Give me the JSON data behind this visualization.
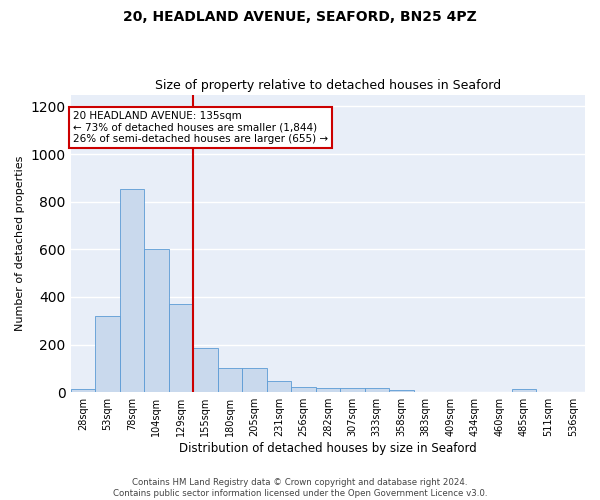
{
  "title1": "20, HEADLAND AVENUE, SEAFORD, BN25 4PZ",
  "title2": "Size of property relative to detached houses in Seaford",
  "xlabel": "Distribution of detached houses by size in Seaford",
  "ylabel": "Number of detached properties",
  "bin_labels": [
    "28sqm",
    "53sqm",
    "78sqm",
    "104sqm",
    "129sqm",
    "155sqm",
    "180sqm",
    "205sqm",
    "231sqm",
    "256sqm",
    "282sqm",
    "307sqm",
    "333sqm",
    "358sqm",
    "383sqm",
    "409sqm",
    "434sqm",
    "460sqm",
    "485sqm",
    "511sqm",
    "536sqm"
  ],
  "bar_heights": [
    15,
    320,
    855,
    600,
    370,
    185,
    100,
    100,
    48,
    20,
    18,
    17,
    17,
    10,
    0,
    0,
    0,
    0,
    15,
    0,
    0
  ],
  "bar_color": "#c9d9ed",
  "bar_edge_color": "#5b9bd5",
  "background_color": "#e8eef8",
  "grid_color": "#ffffff",
  "vline_x": 4.5,
  "vline_color": "#cc0000",
  "annotation_text": "20 HEADLAND AVENUE: 135sqm\n← 73% of detached houses are smaller (1,844)\n26% of semi-detached houses are larger (655) →",
  "annotation_box_color": "#ffffff",
  "annotation_box_edge": "#cc0000",
  "footer_text": "Contains HM Land Registry data © Crown copyright and database right 2024.\nContains public sector information licensed under the Open Government Licence v3.0.",
  "ylim": [
    0,
    1250
  ],
  "fig_bg": "#ffffff"
}
